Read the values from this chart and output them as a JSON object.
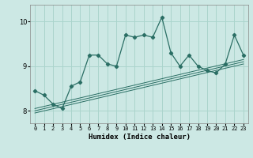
{
  "xlabel": "Humidex (Indice chaleur)",
  "bg_color": "#cce8e4",
  "grid_color": "#aad4cc",
  "line_color": "#2a6e64",
  "xlim": [
    -0.5,
    23.5
  ],
  "ylim": [
    7.72,
    10.38
  ],
  "xticks": [
    0,
    1,
    2,
    3,
    4,
    5,
    6,
    7,
    8,
    9,
    10,
    11,
    12,
    13,
    14,
    15,
    16,
    17,
    18,
    19,
    20,
    21,
    22,
    23
  ],
  "yticks": [
    8,
    9,
    10
  ],
  "main_x": [
    0,
    1,
    2,
    3,
    4,
    5,
    6,
    7,
    8,
    9,
    10,
    11,
    12,
    13,
    14,
    15,
    16,
    17,
    18,
    19,
    20,
    21,
    22,
    23
  ],
  "main_y": [
    8.45,
    8.35,
    8.15,
    8.05,
    8.55,
    8.65,
    9.25,
    9.25,
    9.05,
    9.0,
    9.7,
    9.65,
    9.7,
    9.65,
    10.1,
    9.3,
    9.0,
    9.25,
    9.0,
    8.9,
    8.85,
    9.05,
    9.7,
    9.25
  ],
  "trend_lines": [
    {
      "x": [
        0,
        23
      ],
      "y": [
        7.95,
        9.05
      ]
    },
    {
      "x": [
        0,
        23
      ],
      "y": [
        8.0,
        9.1
      ]
    },
    {
      "x": [
        0,
        23
      ],
      "y": [
        8.05,
        9.15
      ]
    }
  ]
}
